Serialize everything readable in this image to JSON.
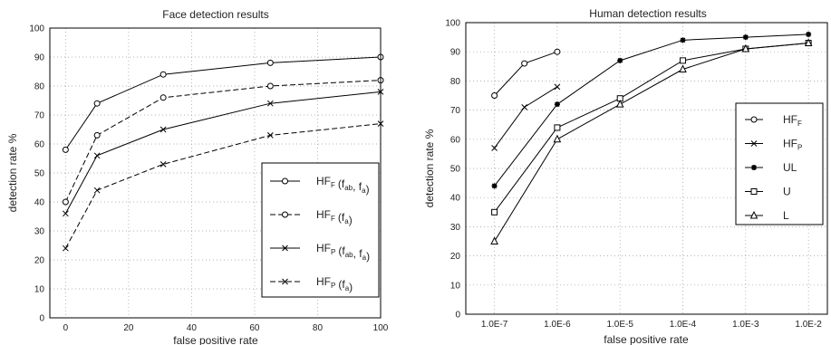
{
  "chart_data": [
    {
      "type": "line",
      "title": "Face detection results",
      "xlabel": "false positive rate",
      "ylabel": "detection rate %",
      "xlim": [
        -5,
        100
      ],
      "ylim": [
        0,
        100
      ],
      "grid": true,
      "legend_position": "bottom-right",
      "xticks": [
        "0",
        "20",
        "40",
        "60",
        "80",
        "100"
      ],
      "yticks": [
        "0",
        "10",
        "20",
        "30",
        "40",
        "50",
        "60",
        "70",
        "80",
        "90",
        "100"
      ],
      "series": [
        {
          "name": "HF_F(f_ab, f_a)",
          "legend": {
            "main": "HF",
            "sub": "F",
            "args": "(f",
            "args_sub": "ab",
            "args_tail": ", f",
            "tail_sub": "a",
            "close": ")"
          },
          "marker": "circle",
          "line": "solid",
          "x": [
            0,
            10,
            31,
            65,
            100
          ],
          "y": [
            58,
            74,
            84,
            88,
            90
          ]
        },
        {
          "name": "HF_F(f_a)",
          "legend": {
            "main": "HF",
            "sub": "F",
            "args": "(f",
            "args_sub": "a",
            "args_tail": "",
            "tail_sub": "",
            "close": ")"
          },
          "marker": "circle",
          "line": "dashed",
          "x": [
            0,
            10,
            31,
            65,
            100
          ],
          "y": [
            40,
            63,
            76,
            80,
            82
          ]
        },
        {
          "name": "HF_P(f_ab, f_a)",
          "legend": {
            "main": "HF",
            "sub": "P",
            "args": "(f",
            "args_sub": "ab",
            "args_tail": ", f",
            "tail_sub": "a",
            "close": ")"
          },
          "marker": "x",
          "line": "solid",
          "x": [
            0,
            10,
            31,
            65,
            100
          ],
          "y": [
            36,
            56,
            65,
            74,
            78
          ]
        },
        {
          "name": "HF_P(f_a)",
          "legend": {
            "main": "HF",
            "sub": "P",
            "args": "(f",
            "args_sub": "a",
            "args_tail": "",
            "tail_sub": "",
            "close": ")"
          },
          "marker": "x",
          "line": "dashed",
          "x": [
            0,
            10,
            31,
            65,
            100
          ],
          "y": [
            24,
            44,
            53,
            63,
            67
          ]
        }
      ]
    },
    {
      "type": "line",
      "title": "Human detection results",
      "xlabel": "false positive rate",
      "ylabel": "detection rate %",
      "xscale": "log",
      "xlim": [
        3.5e-08,
        0.02
      ],
      "ylim": [
        0,
        100
      ],
      "grid": true,
      "legend_position": "right",
      "xticks": [
        {
          "value": 1e-07,
          "label": "1.0E-7"
        },
        {
          "value": 1e-06,
          "label": "1.0E-6"
        },
        {
          "value": 1e-05,
          "label": "1.0E-5"
        },
        {
          "value": 0.0001,
          "label": "1.0E-4"
        },
        {
          "value": 0.001,
          "label": "1.0E-3"
        },
        {
          "value": 0.01,
          "label": "1.0E-2"
        }
      ],
      "yticks": [
        "0",
        "10",
        "20",
        "30",
        "40",
        "50",
        "60",
        "70",
        "80",
        "90",
        "100"
      ],
      "series": [
        {
          "name": "HF_F",
          "legend": {
            "main": "HF",
            "sub": "F"
          },
          "marker": "circle",
          "x": [
            1e-07,
            3e-07,
            1e-06
          ],
          "y": [
            75,
            86,
            90
          ]
        },
        {
          "name": "HF_P",
          "legend": {
            "main": "HF",
            "sub": "P"
          },
          "marker": "x",
          "x": [
            1e-07,
            3e-07,
            1e-06
          ],
          "y": [
            57,
            71,
            78
          ]
        },
        {
          "name": "UL",
          "legend": {
            "main": "UL",
            "sub": ""
          },
          "marker": "star",
          "x": [
            1e-07,
            1e-06,
            1e-05,
            0.0001,
            0.001,
            0.01
          ],
          "y": [
            44,
            72,
            87,
            94,
            95,
            96
          ]
        },
        {
          "name": "U",
          "legend": {
            "main": "U",
            "sub": ""
          },
          "marker": "square",
          "x": [
            1e-07,
            1e-06,
            1e-05,
            0.0001,
            0.001,
            0.01
          ],
          "y": [
            35,
            64,
            74,
            87,
            91,
            93
          ]
        },
        {
          "name": "L",
          "legend": {
            "main": "L",
            "sub": ""
          },
          "marker": "triangle",
          "x": [
            1e-07,
            1e-06,
            1e-05,
            0.0001,
            0.001,
            0.01
          ],
          "y": [
            25,
            60,
            72,
            84,
            91,
            93
          ]
        }
      ]
    }
  ]
}
